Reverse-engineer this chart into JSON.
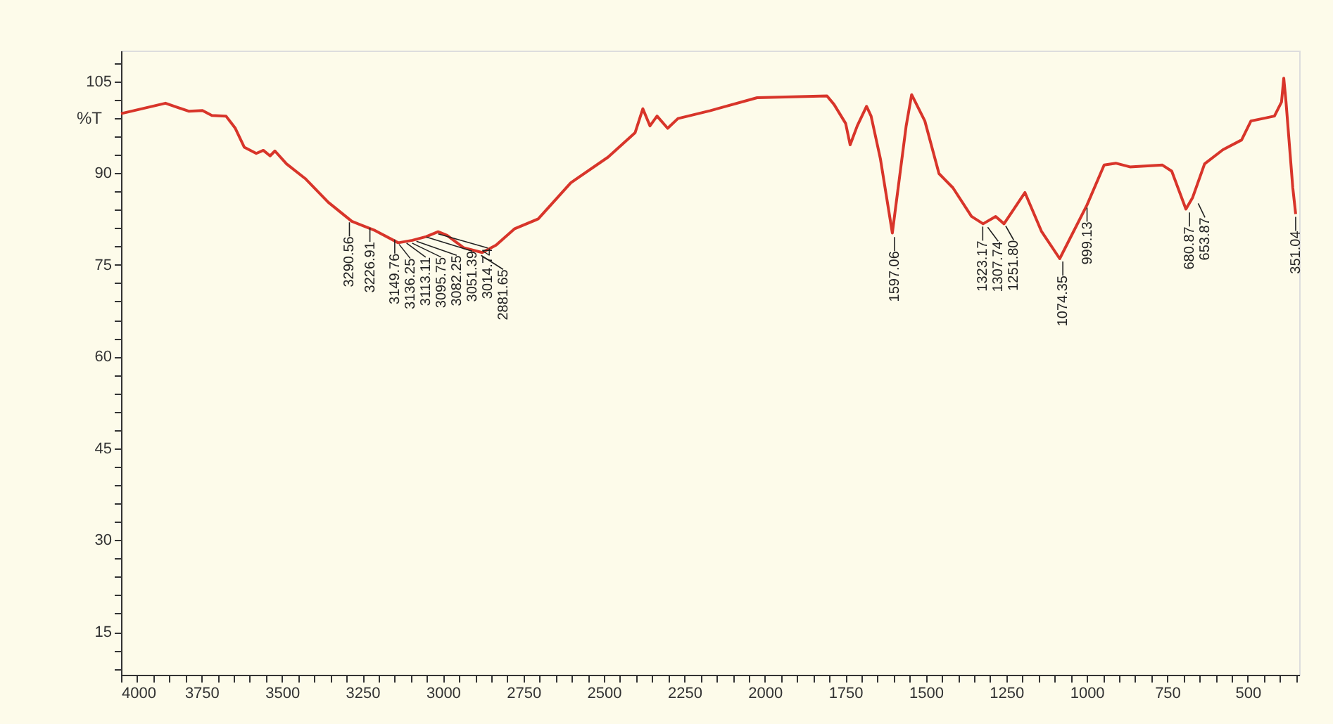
{
  "chart_data": {
    "type": "line",
    "ylabel": "%T",
    "xlim": [
      4000,
      340
    ],
    "ylim": [
      8,
      110
    ],
    "xticks": [
      4000,
      {
        "value": 3950,
        "label": null
      },
      {
        "value": 3900,
        "label": null
      },
      {
        "value": 3850,
        "label": null
      },
      {
        "value": 3800,
        "label": null
      },
      3750,
      {
        "value": 3700,
        "label": null
      },
      {
        "value": 3650,
        "label": null
      },
      {
        "value": 3600,
        "label": null
      },
      {
        "value": 3550,
        "label": null
      },
      3500,
      {
        "value": 3450,
        "label": null
      },
      {
        "value": 3400,
        "label": null
      },
      {
        "value": 3350,
        "label": null
      },
      {
        "value": 3300,
        "label": null
      },
      3250,
      {
        "value": 3200,
        "label": null
      },
      {
        "value": 3150,
        "label": null
      },
      {
        "value": 3100,
        "label": null
      },
      {
        "value": 3050,
        "label": null
      },
      3000,
      {
        "value": 2950,
        "label": null
      },
      {
        "value": 2900,
        "label": null
      },
      {
        "value": 2850,
        "label": null
      },
      {
        "value": 2800,
        "label": null
      },
      2750,
      {
        "value": 2700,
        "label": null
      },
      {
        "value": 2650,
        "label": null
      },
      {
        "value": 2600,
        "label": null
      },
      {
        "value": 2550,
        "label": null
      },
      2500,
      {
        "value": 2450,
        "label": null
      },
      {
        "value": 2400,
        "label": null
      },
      {
        "value": 2350,
        "label": null
      },
      {
        "value": 2300,
        "label": null
      },
      2250,
      {
        "value": 2200,
        "label": null
      },
      {
        "value": 2150,
        "label": null
      },
      {
        "value": 2100,
        "label": null
      },
      {
        "value": 2050,
        "label": null
      },
      2000,
      {
        "value": 1950,
        "label": null
      },
      {
        "value": 1900,
        "label": null
      },
      {
        "value": 1850,
        "label": null
      },
      {
        "value": 1800,
        "label": null
      },
      1750,
      {
        "value": 1700,
        "label": null
      },
      {
        "value": 1650,
        "label": null
      },
      {
        "value": 1600,
        "label": null
      },
      {
        "value": 1550,
        "label": null
      },
      1500,
      {
        "value": 1450,
        "label": null
      },
      {
        "value": 1400,
        "label": null
      },
      {
        "value": 1350,
        "label": null
      },
      {
        "value": 1300,
        "label": null
      },
      1250,
      {
        "value": 1200,
        "label": null
      },
      {
        "value": 1150,
        "label": null
      },
      {
        "value": 1100,
        "label": null
      },
      {
        "value": 1050,
        "label": null
      },
      1000,
      {
        "value": 950,
        "label": null
      },
      {
        "value": 900,
        "label": null
      },
      {
        "value": 850,
        "label": null
      },
      {
        "value": 800,
        "label": null
      },
      750,
      {
        "value": 700,
        "label": null
      },
      {
        "value": 650,
        "label": null
      },
      {
        "value": 600,
        "label": null
      },
      {
        "value": 550,
        "label": null
      },
      500,
      {
        "value": 450,
        "label": null
      },
      {
        "value": 400,
        "label": null
      },
      {
        "value": 350,
        "label": null
      }
    ],
    "yticks": [
      {
        "value": 9,
        "label": null
      },
      {
        "value": 12,
        "label": null
      },
      15,
      {
        "value": 18,
        "label": null
      },
      {
        "value": 21,
        "label": null
      },
      {
        "value": 24,
        "label": null
      },
      {
        "value": 27,
        "label": null
      },
      30,
      {
        "value": 33,
        "label": null
      },
      {
        "value": 36,
        "label": null
      },
      {
        "value": 39,
        "label": null
      },
      {
        "value": 42,
        "label": null
      },
      45,
      {
        "value": 48,
        "label": null
      },
      {
        "value": 51,
        "label": null
      },
      {
        "value": 54,
        "label": null
      },
      {
        "value": 57,
        "label": null
      },
      60,
      {
        "value": 63,
        "label": null
      },
      {
        "value": 66,
        "label": null
      },
      {
        "value": 69,
        "label": null
      },
      {
        "value": 72,
        "label": null
      },
      75,
      {
        "value": 78,
        "label": null
      },
      {
        "value": 81,
        "label": null
      },
      {
        "value": 84,
        "label": null
      },
      {
        "value": 87,
        "label": null
      },
      90,
      {
        "value": 93,
        "label": null
      },
      {
        "value": 96,
        "label": null
      },
      {
        "value": 99,
        "label": null
      },
      {
        "value": 102,
        "label": null
      },
      105,
      {
        "value": 108,
        "label": null
      }
    ],
    "grid": false,
    "marker": "none",
    "line_style": "solid",
    "series": [
      {
        "color": "#d8352a",
        "x": [
          4000,
          3862,
          3790,
          3747,
          3718,
          3674,
          3645,
          3617,
          3580,
          3558,
          3537,
          3522,
          3486,
          3428,
          3356,
          3283,
          3211,
          3139,
          3095,
          3052,
          3015,
          2987,
          2936,
          2878,
          2835,
          2777,
          2704,
          2603,
          2487,
          2403,
          2379,
          2357,
          2335,
          2302,
          2270,
          2169,
          2024,
          1807,
          1785,
          1749,
          1735,
          1713,
          1684,
          1670,
          1641,
          1604,
          1561,
          1544,
          1503,
          1459,
          1416,
          1358,
          1322,
          1283,
          1257,
          1192,
          1141,
          1084,
          999,
          946,
          910,
          866,
          765,
          736,
          692,
          671,
          634,
          577,
          519,
          490,
          453,
          417,
          395,
          388,
          381,
          360,
          351
        ],
        "values": [
          99.7,
          101.4,
          100.1,
          100.2,
          99.4,
          99.3,
          97.3,
          94.2,
          93.2,
          93.7,
          92.8,
          93.6,
          91.5,
          89.1,
          85.2,
          82.1,
          80.6,
          78.6,
          79.0,
          79.6,
          80.4,
          79.8,
          77.8,
          77.0,
          78.2,
          80.9,
          82.5,
          88.4,
          92.6,
          96.6,
          100.5,
          97.7,
          99.3,
          97.3,
          98.9,
          100.2,
          102.3,
          102.6,
          101.2,
          98.1,
          94.6,
          97.7,
          100.9,
          99.3,
          92.3,
          80.2,
          97.7,
          102.8,
          98.5,
          89.9,
          87.6,
          82.9,
          81.7,
          82.9,
          81.7,
          86.8,
          80.5,
          76.0,
          84.8,
          91.3,
          91.6,
          91.0,
          91.3,
          90.3,
          84.1,
          86.0,
          91.5,
          93.8,
          95.4,
          98.5,
          98.9,
          99.3,
          101.6,
          105.5,
          101.6,
          87.6,
          83.3
        ]
      }
    ],
    "annotations": [
      {
        "text": "3290.56",
        "x": 3290.56,
        "y": 82.4
      },
      {
        "text": "3226.91",
        "x": 3226.91,
        "y": 81.5
      },
      {
        "text": "3149.76",
        "x": 3149.76,
        "y": 79.6
      },
      {
        "text": "3136.25",
        "x": 3136.25,
        "y": 78.8
      },
      {
        "text": "3113.11",
        "x": 3113.11,
        "y": 79.0
      },
      {
        "text": "3095.75",
        "x": 3095.75,
        "y": 79.0
      },
      {
        "text": "3082.25",
        "x": 3082.25,
        "y": 79.3
      },
      {
        "text": "3051.39",
        "x": 3051.39,
        "y": 80.0
      },
      {
        "text": "3014.74",
        "x": 3014.74,
        "y": 80.5
      },
      {
        "text": "2881.65",
        "x": 2881.65,
        "y": 77.0
      },
      {
        "text": "1597.06",
        "x": 1597.06,
        "y": 80.0
      },
      {
        "text": "1323.17",
        "x": 1323.17,
        "y": 81.7
      },
      {
        "text": "1307.74",
        "x": 1307.74,
        "y": 81.6
      },
      {
        "text": "1251.80",
        "x": 1251.8,
        "y": 81.8
      },
      {
        "text": "1074.35",
        "x": 1074.35,
        "y": 76.0
      },
      {
        "text": "999.13",
        "x": 999.13,
        "y": 84.8
      },
      {
        "text": "680.87",
        "x": 680.87,
        "y": 84.0
      },
      {
        "text": "653.87",
        "x": 653.87,
        "y": 85.5
      },
      {
        "text": "351.04",
        "x": 351.04,
        "y": 83.3
      }
    ]
  }
}
